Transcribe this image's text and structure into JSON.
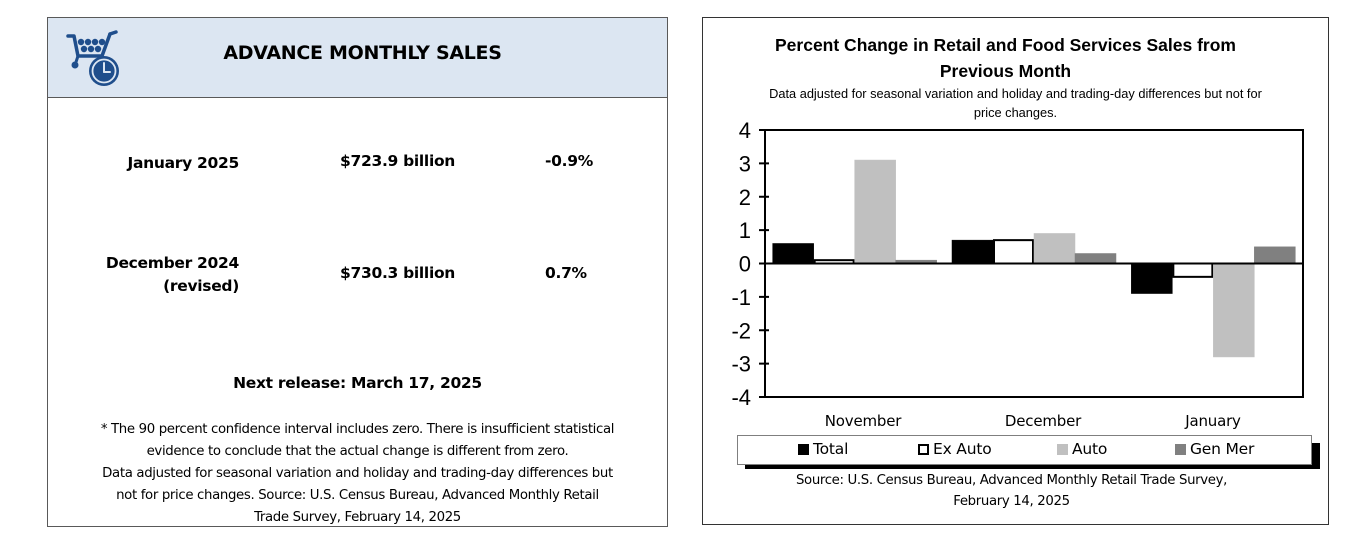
{
  "left_panel": {
    "title": "ADVANCE MONTHLY SALES",
    "icon": "shopping-cart-clock-icon",
    "header_bg": "#dce6f2",
    "icon_color": "#1f4e8c",
    "rows": [
      {
        "period": "January 2025",
        "period_sub": "",
        "value": "$723.9 billion",
        "pct": "-0.9%"
      },
      {
        "period": "December 2024",
        "period_sub": "(revised)",
        "value": "$730.3 billion",
        "pct": "0.7%"
      }
    ],
    "next_release": "Next release: March 17, 2025",
    "note_lines": [
      "* The 90 percent confidence interval includes zero. There is insufficient statistical",
      "evidence to conclude that the actual change is different from zero.",
      "Data adjusted for seasonal variation and holiday and trading-day differences but",
      "not for price changes. Source: U.S. Census Bureau, Advanced Monthly Retail",
      "Trade Survey, February 14, 2025"
    ]
  },
  "right_panel": {
    "source_lines": [
      "Source: U.S. Census Bureau, Advanced Monthly Retail Trade Survey,",
      "February 14, 2025"
    ]
  },
  "chart_data": {
    "type": "bar",
    "title_lines": [
      "Percent Change in Retail and Food Services Sales from",
      "Previous Month"
    ],
    "subtitle_lines": [
      "Data adjusted for seasonal variation and holiday and trading-day differences but not for",
      "price changes."
    ],
    "categories": [
      "November",
      "December",
      "January"
    ],
    "series": [
      {
        "name": "Total",
        "values": [
          0.6,
          0.7,
          -0.9
        ],
        "fill": "#000000",
        "stroke": "#000000"
      },
      {
        "name": "Ex Auto",
        "values": [
          0.1,
          0.7,
          -0.4
        ],
        "fill": "#ffffff",
        "stroke": "#000000"
      },
      {
        "name": "Auto",
        "values": [
          3.1,
          0.9,
          -2.8
        ],
        "fill": "#c0c0c0",
        "stroke": "#c0c0c0"
      },
      {
        "name": "Gen Mer",
        "values": [
          0.1,
          0.3,
          0.5
        ],
        "fill": "#808080",
        "stroke": "#808080"
      }
    ],
    "xlabel": "",
    "ylabel": "",
    "ylim": [
      -4,
      4
    ],
    "yticks": [
      4,
      3,
      2,
      1,
      0,
      -1,
      -2,
      -3,
      -4
    ],
    "grid": false,
    "legend_position": "bottom"
  }
}
